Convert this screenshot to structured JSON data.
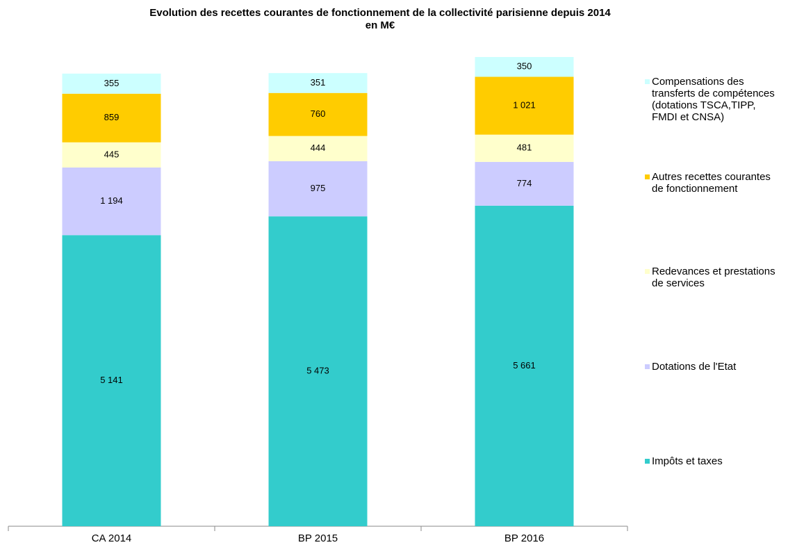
{
  "chart_data": {
    "type": "stacked_bar",
    "title": "Evolution des recettes courantes de fonctionnement  de la collectivité parisienne depuis 2014",
    "subtitle": "en M€",
    "categories": [
      "CA 2014",
      "BP 2015",
      "BP 2016"
    ],
    "series": [
      {
        "name": "Impôts et taxes",
        "color": "#33CCCC",
        "values": [
          5141,
          5473,
          5661
        ],
        "value_labels": [
          "5 141",
          "5 473",
          "5 661"
        ]
      },
      {
        "name": "Dotations de l'Etat",
        "color": "#CCCCFF",
        "values": [
          1194,
          975,
          774
        ],
        "value_labels": [
          "1 194",
          "975",
          "774"
        ]
      },
      {
        "name": "Redevances et prestations de services",
        "color": "#FFFFCC",
        "values": [
          445,
          444,
          481
        ],
        "value_labels": [
          "445",
          "444",
          "481"
        ]
      },
      {
        "name": "Autres recettes courantes de fonctionnement",
        "color": "#FFCC00",
        "values": [
          859,
          760,
          1021
        ],
        "value_labels": [
          "859",
          "760",
          "1 021"
        ]
      },
      {
        "name": "Compensations des transferts de compétences (dotations TSCA,TIPP, FMDI et CNSA)",
        "color": "#CCFFFF",
        "values": [
          355,
          351,
          350
        ],
        "value_labels": [
          "355",
          "351",
          "350"
        ]
      }
    ],
    "legend": "right"
  }
}
